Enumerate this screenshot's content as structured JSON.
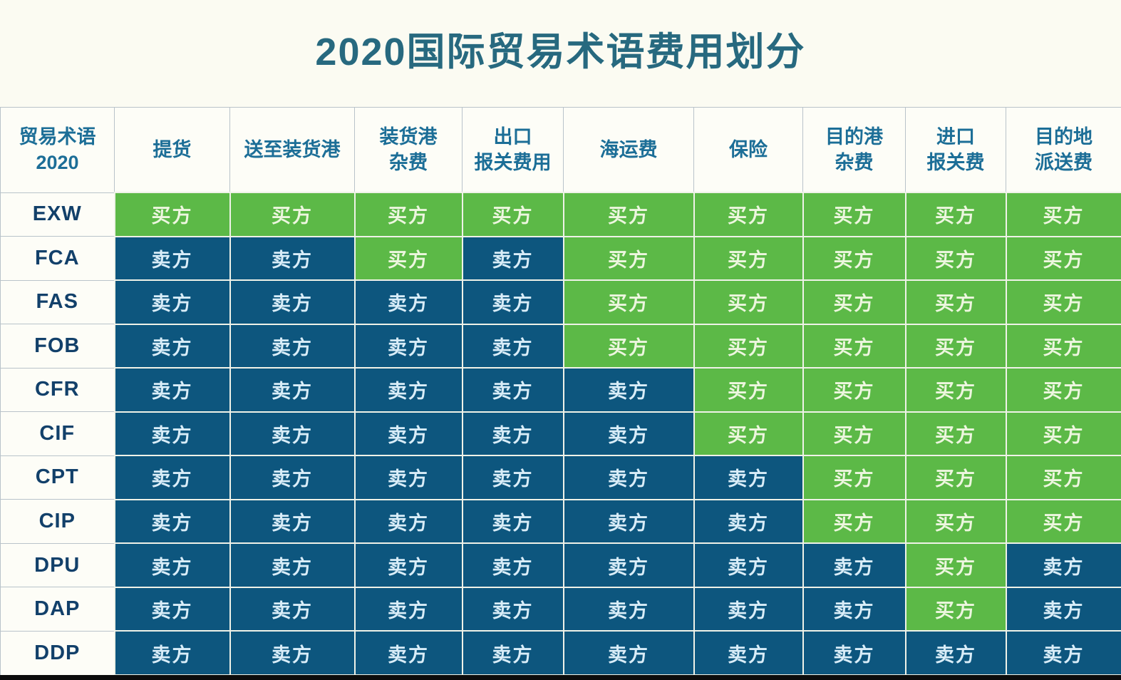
{
  "chart_data": {
    "type": "table",
    "title": "2020国际贸易术语费用划分",
    "corner_header": "贸易术语\n2020",
    "columns": [
      "提货",
      "送至装货港",
      "装货港\n杂费",
      "出口\n报关费用",
      "海运费",
      "保险",
      "目的港\n杂费",
      "进口\n报关费",
      "目的地\n派送费"
    ],
    "legend": {
      "buyer_label": "买方",
      "seller_label": "卖方"
    },
    "colors": {
      "buyer_bg": "#5cb947",
      "seller_bg": "#0d567e",
      "buyer_text": "#edf6df",
      "seller_text": "#d9edf8",
      "header_text": "#1c6e97",
      "term_text": "#12406a",
      "title_text": "#27697f"
    },
    "rows": [
      {
        "term": "EXW",
        "cells": [
          "买方",
          "买方",
          "买方",
          "买方",
          "买方",
          "买方",
          "买方",
          "买方",
          "买方"
        ]
      },
      {
        "term": "FCA",
        "cells": [
          "卖方",
          "卖方",
          "买方",
          "卖方",
          "买方",
          "买方",
          "买方",
          "买方",
          "买方"
        ]
      },
      {
        "term": "FAS",
        "cells": [
          "卖方",
          "卖方",
          "卖方",
          "卖方",
          "买方",
          "买方",
          "买方",
          "买方",
          "买方"
        ]
      },
      {
        "term": "FOB",
        "cells": [
          "卖方",
          "卖方",
          "卖方",
          "卖方",
          "买方",
          "买方",
          "买方",
          "买方",
          "买方"
        ]
      },
      {
        "term": "CFR",
        "cells": [
          "卖方",
          "卖方",
          "卖方",
          "卖方",
          "卖方",
          "买方",
          "买方",
          "买方",
          "买方"
        ]
      },
      {
        "term": "CIF",
        "cells": [
          "卖方",
          "卖方",
          "卖方",
          "卖方",
          "卖方",
          "买方",
          "买方",
          "买方",
          "买方"
        ]
      },
      {
        "term": "CPT",
        "cells": [
          "卖方",
          "卖方",
          "卖方",
          "卖方",
          "卖方",
          "卖方",
          "买方",
          "买方",
          "买方"
        ]
      },
      {
        "term": "CIP",
        "cells": [
          "卖方",
          "卖方",
          "卖方",
          "卖方",
          "卖方",
          "卖方",
          "买方",
          "买方",
          "买方"
        ]
      },
      {
        "term": "DPU",
        "cells": [
          "卖方",
          "卖方",
          "卖方",
          "卖方",
          "卖方",
          "卖方",
          "卖方",
          "买方",
          "卖方"
        ]
      },
      {
        "term": "DAP",
        "cells": [
          "卖方",
          "卖方",
          "卖方",
          "卖方",
          "卖方",
          "卖方",
          "卖方",
          "买方",
          "卖方"
        ]
      },
      {
        "term": "DDP",
        "cells": [
          "卖方",
          "卖方",
          "卖方",
          "卖方",
          "卖方",
          "卖方",
          "卖方",
          "卖方",
          "卖方"
        ]
      }
    ]
  }
}
